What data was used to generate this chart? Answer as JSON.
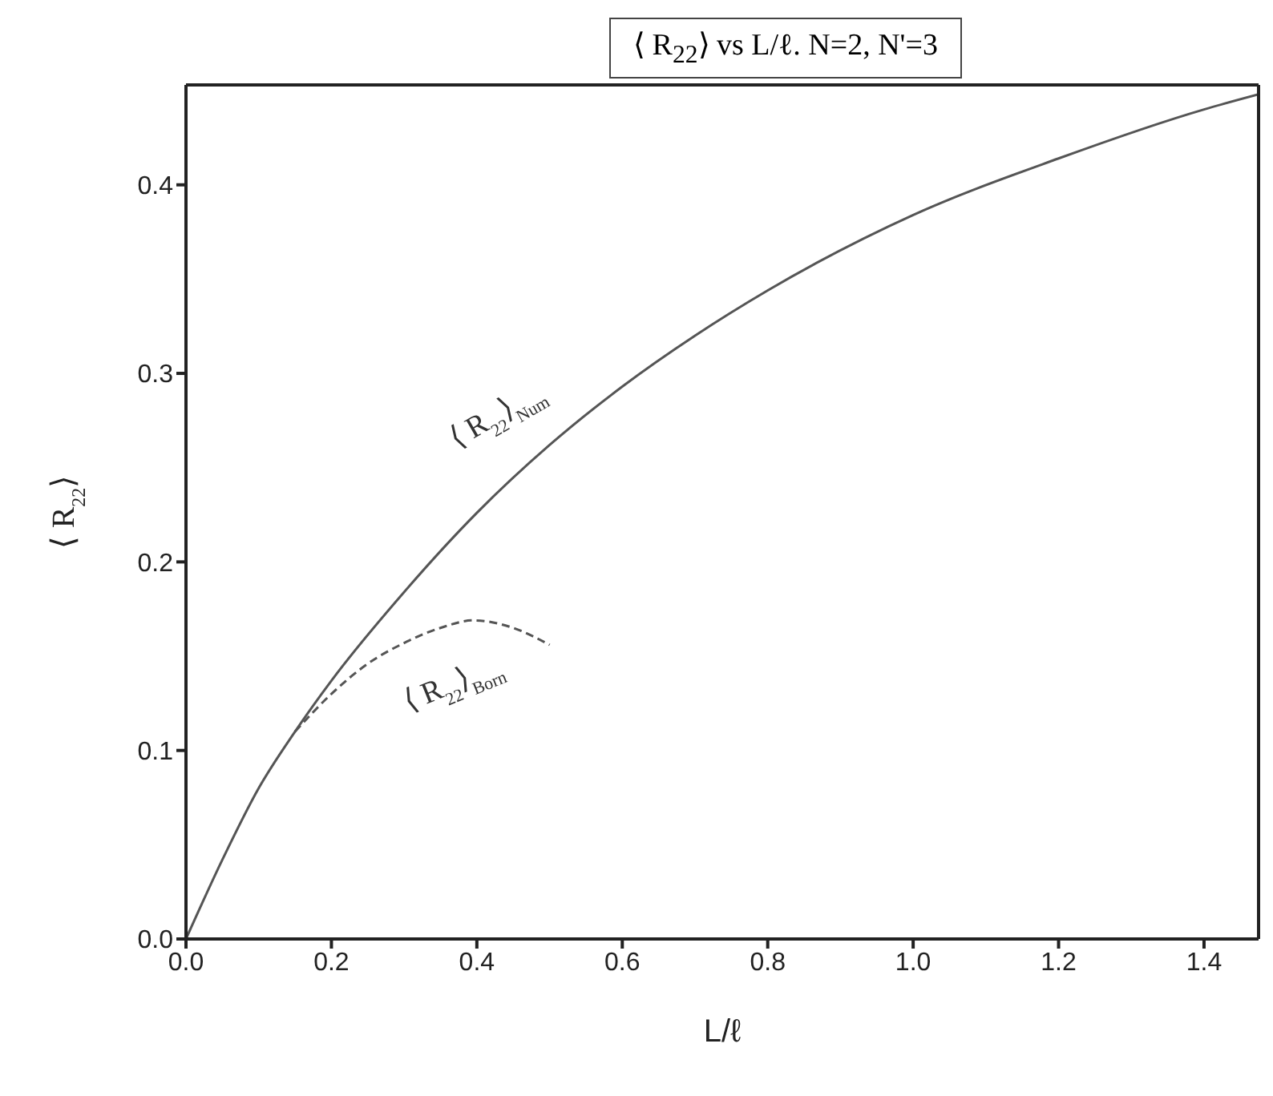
{
  "chart_data": {
    "type": "line",
    "title": "⟨ R$_{22}$⟩ vs L/ℓ. N=2, N'=3",
    "xlabel": "L/ℓ",
    "ylabel": "⟨ R$_{22}$⟩",
    "xlim": [
      0,
      1.475
    ],
    "ylim": [
      0,
      0.453
    ],
    "xticks": [
      {
        "value": 0,
        "label": "0.0"
      },
      {
        "value": 0.2,
        "label": "0.2"
      },
      {
        "value": 0.4,
        "label": "0.4"
      },
      {
        "value": 0.6,
        "label": "0.6"
      },
      {
        "value": 0.8,
        "label": "0.8"
      },
      {
        "value": 1,
        "label": "1.0"
      },
      {
        "value": 1.2,
        "label": "1.2"
      },
      {
        "value": 1.4,
        "label": "1.4"
      }
    ],
    "yticks": [
      {
        "value": 0,
        "label": "0.0"
      },
      0.1,
      0.2,
      0.3,
      0.4
    ],
    "marker": "none",
    "series": [
      {
        "name": "⟨ R$_{22}$⟩$_{Num}$",
        "color": "#555555",
        "line_style": "solid",
        "x": [
          0,
          0.05,
          0.1,
          0.15,
          0.2,
          0.3,
          0.4,
          0.5,
          0.6,
          0.7,
          0.8,
          1.0,
          1.2,
          1.4,
          1.475
        ],
        "values": [
          0,
          0.042,
          0.08,
          0.11,
          0.137,
          0.184,
          0.226,
          0.262,
          0.293,
          0.32,
          0.344,
          0.384,
          0.414,
          0.44,
          0.448
        ]
      },
      {
        "name": "⟨ R$_{22}$⟩$_{Born}$",
        "color": "#555555",
        "line_style": "dashed",
        "x": [
          0.15,
          0.2,
          0.25,
          0.3,
          0.35,
          0.395,
          0.45,
          0.5
        ],
        "values": [
          0.11,
          0.13,
          0.146,
          0.157,
          0.165,
          0.169,
          0.165,
          0.156
        ]
      }
    ]
  }
}
